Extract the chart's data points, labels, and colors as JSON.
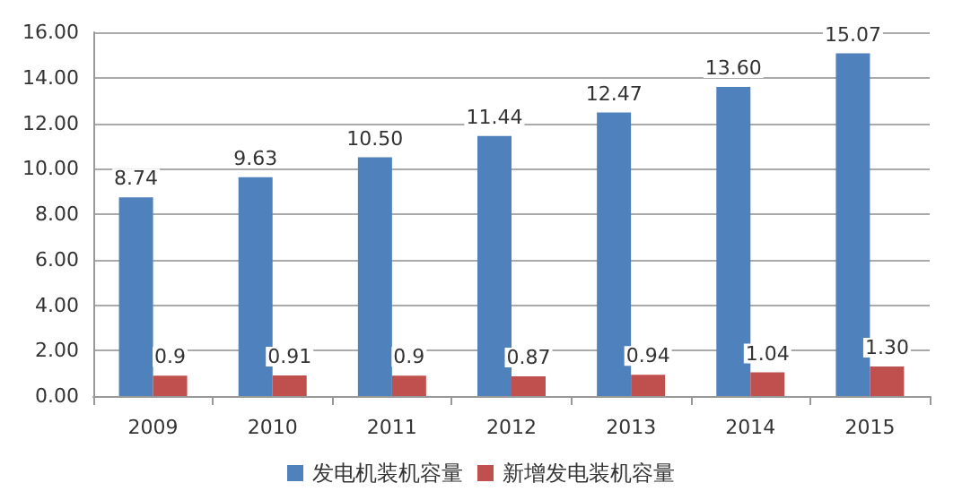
{
  "chart_data": {
    "type": "bar",
    "categories": [
      "2009",
      "2010",
      "2011",
      "2012",
      "2013",
      "2014",
      "2015"
    ],
    "series": [
      {
        "name": "发电机装机容量",
        "color": "#4f81bd",
        "values": [
          8.74,
          9.63,
          10.5,
          11.44,
          12.47,
          13.6,
          15.07
        ],
        "value_labels": [
          "8.74",
          "9.63",
          "10.50",
          "11.44",
          "12.47",
          "13.60",
          "15.07"
        ]
      },
      {
        "name": "新增发电装机容量",
        "color": "#c0504d",
        "values": [
          0.9,
          0.91,
          0.9,
          0.87,
          0.94,
          1.04,
          1.3
        ],
        "value_labels": [
          "0.9",
          "0.91",
          "0.9",
          "0.87",
          "0.94",
          "1.04",
          "1.30"
        ]
      }
    ],
    "ylim": [
      0,
      16
    ],
    "yticks": [
      {
        "value": 0,
        "label": "0.00"
      },
      {
        "value": 2,
        "label": "2.00"
      },
      {
        "value": 4,
        "label": "4.00"
      },
      {
        "value": 6,
        "label": "6.00"
      },
      {
        "value": 8,
        "label": "8.00"
      },
      {
        "value": 10,
        "label": "10.00"
      },
      {
        "value": 12,
        "label": "12.00"
      },
      {
        "value": 14,
        "label": "14.00"
      },
      {
        "value": 16,
        "label": "16.00"
      }
    ],
    "grid": "y",
    "legend": "bottom"
  }
}
